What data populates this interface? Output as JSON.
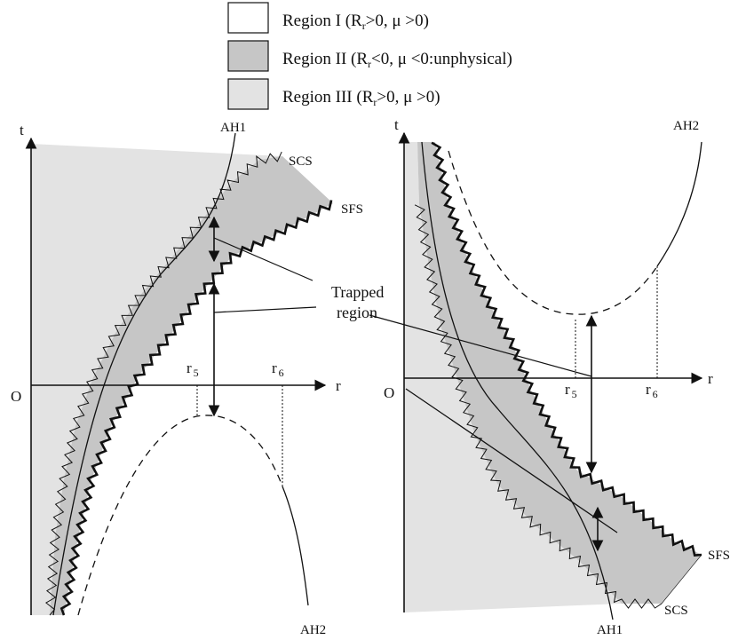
{
  "colors": {
    "region1": "#ffffff",
    "region2": "#c6c6c6",
    "region3": "#e3e3e3",
    "ink": "#111111"
  },
  "legend": [
    {
      "prefix": "Region I (R",
      "sub": "r",
      "suffix": ">0, μ >0)"
    },
    {
      "prefix": "Region II (R",
      "sub": "r",
      "suffix": "<0, μ <0:unphysical)"
    },
    {
      "prefix": "Region III (R",
      "sub": "r",
      "suffix": ">0, μ >0)"
    }
  ],
  "left": {
    "t_axis": "t",
    "r_axis": "r",
    "origin": "O",
    "r5": {
      "main": "r",
      "sub": "5"
    },
    "r6": {
      "main": "r",
      "sub": "6"
    },
    "ah1": "AH1",
    "ah2": "AH2",
    "scs": "SCS",
    "sfs": "SFS"
  },
  "right": {
    "t_axis": "t",
    "r_axis": "r",
    "origin": "O",
    "r5": {
      "main": "r",
      "sub": "5"
    },
    "r6": {
      "main": "r",
      "sub": "6"
    },
    "ah1": "AH1",
    "ah2": "AH2",
    "scs": "SCS",
    "sfs": "SFS"
  },
  "trapped": {
    "line1": "Trapped",
    "line2": "region"
  }
}
